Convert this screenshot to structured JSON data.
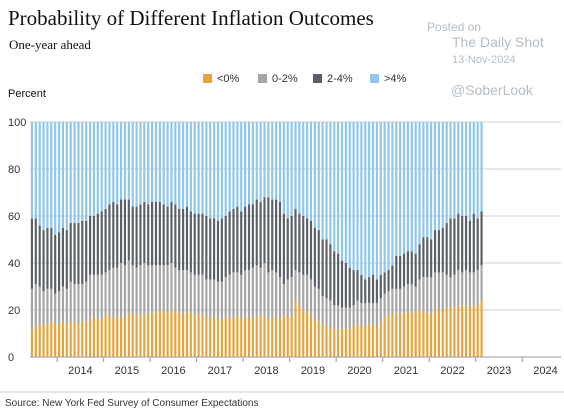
{
  "chart_data": {
    "type": "bar",
    "stacked": true,
    "title": "Probability of Different Inflation Outcomes",
    "subtitle": "One-year ahead",
    "ylabel": "Percent",
    "ylim": [
      0,
      100
    ],
    "yticks": [
      0,
      20,
      40,
      60,
      80,
      100
    ],
    "xticks": [
      "2014",
      "2015",
      "2016",
      "2017",
      "2018",
      "2019",
      "2020",
      "2021",
      "2022",
      "2023",
      "2024"
    ],
    "x_start": "2013-06",
    "x_end": "2024-10",
    "grid": true,
    "legend_position": "top",
    "series": [
      {
        "name": "<0%",
        "color": "#e8a33a",
        "values": [
          12,
          13,
          14,
          13,
          14,
          15,
          14,
          14,
          15,
          14,
          15,
          15,
          14,
          15,
          15,
          16,
          17,
          16,
          16,
          18,
          17,
          17,
          16,
          17,
          17,
          19,
          18,
          18,
          18,
          18,
          18,
          19,
          19,
          20,
          19,
          19,
          20,
          19,
          19,
          18,
          19,
          19,
          18,
          18,
          18,
          17,
          17,
          17,
          16,
          16,
          17,
          16,
          17,
          17,
          16,
          17,
          17,
          17,
          17,
          18,
          17,
          16,
          17,
          17,
          16,
          18,
          17,
          17,
          24,
          22,
          20,
          19,
          18,
          16,
          15,
          14,
          13,
          13,
          12,
          12,
          12,
          12,
          12,
          13,
          14,
          13,
          13,
          14,
          14,
          13,
          15,
          17,
          18,
          18,
          19,
          18,
          19,
          19,
          19,
          19,
          20,
          19,
          19,
          18,
          20,
          20,
          20,
          21,
          21,
          21,
          22,
          22,
          22,
          21,
          22,
          22,
          24
        ]
      },
      {
        "name": "0-2%",
        "color": "#a5a5a5",
        "values": [
          17,
          18,
          16,
          15,
          15,
          14,
          13,
          14,
          15,
          15,
          17,
          16,
          17,
          16,
          17,
          19,
          18,
          19,
          19,
          18,
          20,
          21,
          22,
          23,
          22,
          22,
          21,
          20,
          21,
          22,
          21,
          20,
          20,
          19,
          20,
          20,
          20,
          19,
          18,
          19,
          18,
          17,
          17,
          17,
          17,
          16,
          16,
          16,
          16,
          16,
          17,
          19,
          19,
          19,
          19,
          20,
          20,
          21,
          22,
          20,
          23,
          20,
          20,
          19,
          18,
          13,
          16,
          17,
          13,
          14,
          15,
          16,
          15,
          14,
          14,
          12,
          12,
          11,
          10,
          10,
          9,
          9,
          9,
          9,
          10,
          10,
          10,
          9,
          9,
          10,
          10,
          10,
          10,
          11,
          10,
          11,
          11,
          12,
          12,
          11,
          13,
          15,
          15,
          16,
          16,
          16,
          16,
          14,
          13,
          14,
          15,
          14,
          15,
          15,
          14,
          15,
          15
        ]
      },
      {
        "name": "2-4%",
        "color": "#5b6068",
        "values": [
          30,
          28,
          26,
          26,
          26,
          26,
          25,
          25,
          25,
          25,
          25,
          26,
          26,
          27,
          26,
          25,
          25,
          26,
          27,
          27,
          28,
          28,
          27,
          27,
          28,
          26,
          25,
          26,
          26,
          26,
          26,
          27,
          27,
          27,
          26,
          25,
          26,
          27,
          26,
          26,
          27,
          26,
          26,
          26,
          26,
          27,
          26,
          26,
          26,
          27,
          26,
          27,
          27,
          28,
          27,
          27,
          28,
          27,
          28,
          28,
          28,
          32,
          30,
          31,
          32,
          30,
          26,
          26,
          26,
          25,
          25,
          24,
          25,
          25,
          25,
          24,
          25,
          24,
          23,
          22,
          20,
          19,
          17,
          15,
          13,
          12,
          10,
          11,
          12,
          10,
          10,
          9,
          9,
          10,
          14,
          14,
          14,
          14,
          14,
          14,
          15,
          17,
          17,
          16,
          18,
          18,
          19,
          22,
          25,
          24,
          24,
          24,
          23,
          22,
          25,
          22,
          23
        ]
      },
      {
        "name": ">4%",
        "color": "#8ec6ec",
        "values": [
          41,
          41,
          44,
          46,
          45,
          45,
          48,
          47,
          45,
          46,
          43,
          43,
          43,
          42,
          42,
          40,
          40,
          39,
          38,
          37,
          35,
          34,
          35,
          33,
          33,
          33,
          36,
          36,
          35,
          34,
          35,
          34,
          34,
          34,
          35,
          36,
          34,
          35,
          37,
          37,
          36,
          38,
          39,
          39,
          39,
          40,
          41,
          41,
          42,
          41,
          40,
          38,
          37,
          36,
          38,
          36,
          35,
          35,
          33,
          34,
          32,
          32,
          33,
          33,
          34,
          39,
          41,
          40,
          37,
          39,
          40,
          41,
          42,
          45,
          46,
          50,
          50,
          52,
          55,
          56,
          59,
          60,
          62,
          63,
          63,
          65,
          67,
          66,
          65,
          67,
          65,
          64,
          63,
          61,
          57,
          57,
          56,
          55,
          55,
          56,
          52,
          49,
          49,
          50,
          46,
          46,
          45,
          43,
          41,
          41,
          39,
          40,
          40,
          42,
          39,
          41,
          38
        ]
      }
    ]
  },
  "watermark": {
    "posted_on": "Posted on",
    "site": "The Daily Shot",
    "date": "13-Nov-2024",
    "handle": "@SoberLook"
  },
  "source": "Source: New York Fed Survey of Consumer Expectations"
}
